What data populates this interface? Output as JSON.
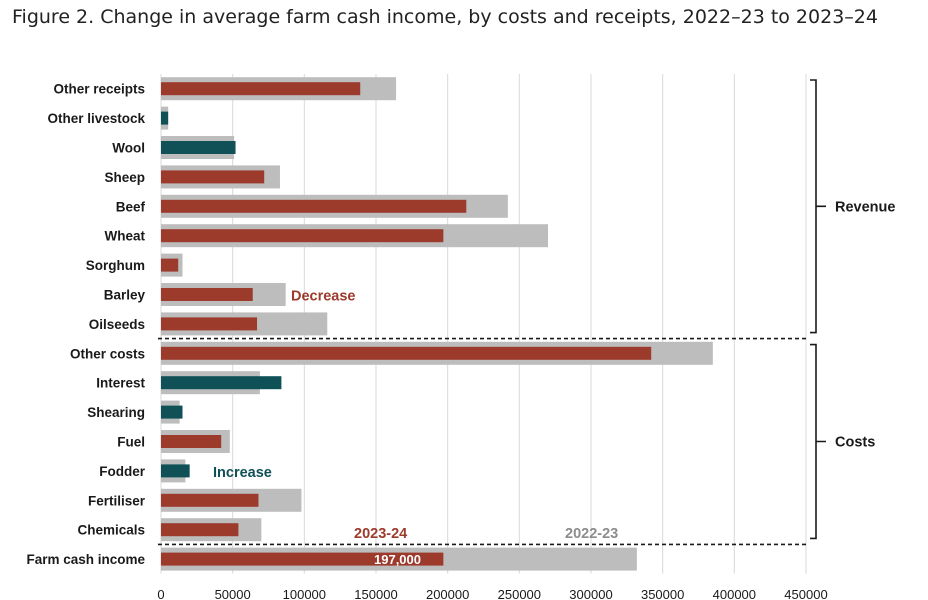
{
  "title": "Figure 2. Change in average farm cash income, by costs and receipts, 2022–23 to 2023–24",
  "colors": {
    "prior": "#bdbdbd",
    "decrease": "#9c3a2c",
    "increase": "#0f5157",
    "text": "#1a1a1a"
  },
  "chart_data": {
    "type": "bar",
    "orientation": "horizontal",
    "categories": [
      "Other receipts",
      "Other livestock",
      "Wool",
      "Sheep",
      "Beef",
      "Wheat",
      "Sorghum",
      "Barley",
      "Oilseeds",
      "Other costs",
      "Interest",
      "Shearing",
      "Fuel",
      "Fodder",
      "Fertiliser",
      "Chemicals",
      "Farm cash income"
    ],
    "series": [
      {
        "name": "2022-23",
        "values": [
          164000,
          5000,
          51000,
          83000,
          242000,
          270000,
          15000,
          87000,
          116000,
          385000,
          69000,
          13000,
          48000,
          17000,
          98000,
          70000,
          332000
        ]
      },
      {
        "name": "2023-24",
        "values": [
          139000,
          5000,
          52000,
          72000,
          213000,
          197000,
          12000,
          64000,
          67000,
          342000,
          84000,
          15000,
          42000,
          20000,
          68000,
          54000,
          197000
        ]
      }
    ],
    "direction": [
      "decrease",
      "increase",
      "increase",
      "decrease",
      "decrease",
      "decrease",
      "decrease",
      "decrease",
      "decrease",
      "decrease",
      "increase",
      "increase",
      "decrease",
      "increase",
      "decrease",
      "decrease",
      "decrease"
    ],
    "groups": [
      {
        "label": "Revenue",
        "from": 0,
        "to": 8
      },
      {
        "label": "Costs",
        "from": 9,
        "to": 15
      }
    ],
    "xlim": [
      0,
      450000
    ],
    "xticks": [
      "0",
      "50000",
      "100000",
      "150000",
      "200000",
      "250000",
      "300000",
      "350000",
      "400000",
      "450000"
    ],
    "annotations": {
      "decrease": "Decrease",
      "increase": "Increase",
      "legend_current": "2023-24",
      "legend_prior": "2022-23",
      "farm_income_value": "197,000"
    },
    "grid": true
  }
}
